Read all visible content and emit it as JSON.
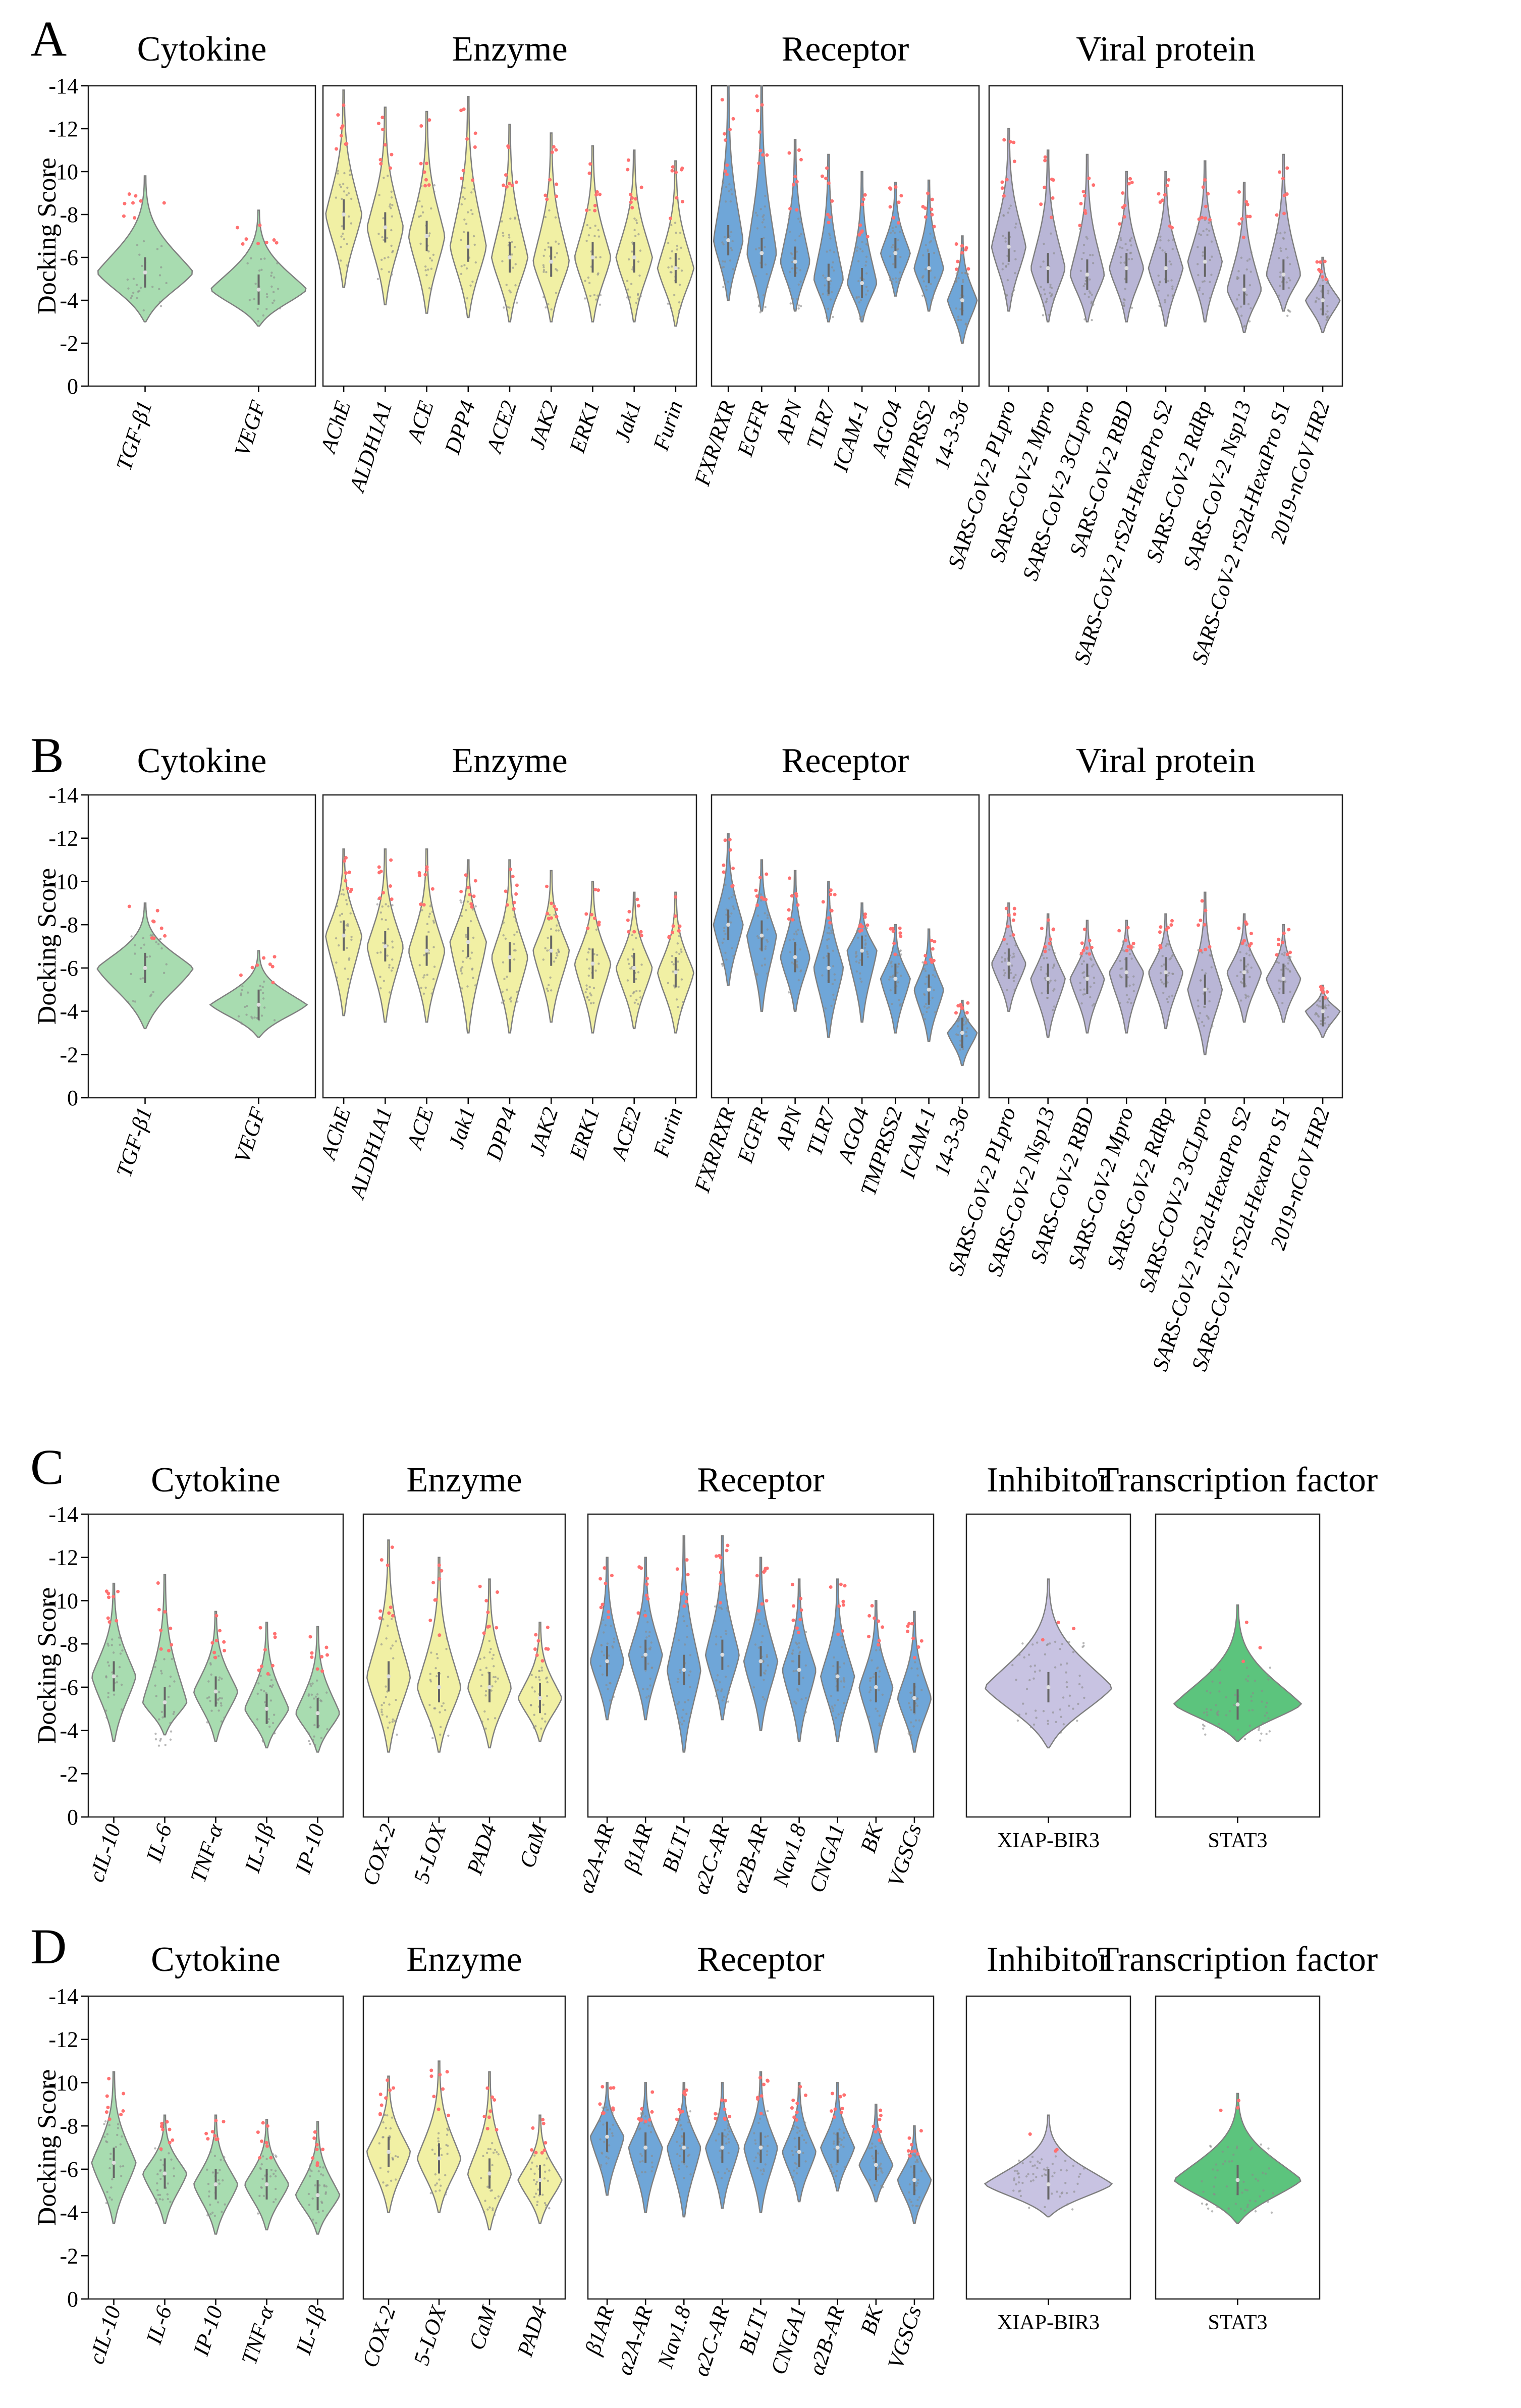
{
  "figure": {
    "y_axis_label": "Docking Score",
    "y_ticks": [
      -14,
      -12,
      -10,
      -8,
      -6,
      -4,
      -2,
      0
    ],
    "ylim": [
      -14,
      0
    ],
    "colors": {
      "Cytokine": "#a8dcb0",
      "Enzyme": "#f1f0a4",
      "Receptor": "#6fa6d8",
      "Viral protein": "#b9b6d6",
      "Inhibitor": "#c8c3e2",
      "Transcription factor": "#5cc47d",
      "top_points": "#ff7070",
      "outline": "#7f7f7f",
      "inner_points": "#8a8a8a"
    }
  },
  "chart_data": [
    {
      "panel": "A",
      "type": "violin",
      "ylabel": "Docking Score",
      "ylim": [
        -14,
        0
      ],
      "groups": [
        {
          "title": "Cytokine",
          "categories": [
            "TGF-β1",
            "VEGF"
          ],
          "medians": [
            -5.3,
            -4.5
          ],
          "tails": [
            [
              -9.8,
              -3.0
            ],
            [
              -8.2,
              -2.8
            ]
          ]
        },
        {
          "title": "Enzyme",
          "categories": [
            "AChE",
            "ALDH1A1",
            "ACE",
            "DPP4",
            "ACE2",
            "JAK2",
            "ERK1",
            "Jak1",
            "Furin"
          ],
          "medians": [
            -8.0,
            -7.4,
            -7.0,
            -6.5,
            -6.0,
            -5.8,
            -6.0,
            -6.0,
            -5.5
          ],
          "tails": [
            [
              -13.8,
              -4.6
            ],
            [
              -13.0,
              -3.8
            ],
            [
              -12.8,
              -3.4
            ],
            [
              -13.5,
              -3.2
            ],
            [
              -12.2,
              -3.0
            ],
            [
              -11.8,
              -3.0
            ],
            [
              -11.2,
              -3.0
            ],
            [
              -11.0,
              -3.0
            ],
            [
              -10.5,
              -2.8
            ]
          ]
        },
        {
          "title": "Receptor",
          "categories": [
            "FXR/RXR",
            "EGFR",
            "APN",
            "TLR7",
            "ICAM-1",
            "AGO4",
            "TMPRSS2",
            "14-3-3σ"
          ],
          "medians": [
            -6.8,
            -6.2,
            -5.8,
            -5.0,
            -4.8,
            -6.2,
            -5.5,
            -4.0
          ],
          "tails": [
            [
              -14.0,
              -4.0
            ],
            [
              -14.0,
              -3.5
            ],
            [
              -11.5,
              -3.5
            ],
            [
              -10.8,
              -3.0
            ],
            [
              -10.0,
              -3.0
            ],
            [
              -9.5,
              -4.2
            ],
            [
              -9.6,
              -3.5
            ],
            [
              -7.0,
              -2.0
            ]
          ]
        },
        {
          "title": "Viral protein",
          "categories": [
            "SARS-CoV-2 PLpro",
            "SARS-CoV-2 Mpro",
            "SARS-CoV-2 3CLpro",
            "SARS-CoV-2 RBD",
            "SARS-CoV-2 rS2d-HexaPro S2",
            "SARS-CoV-2 RdRp",
            "SARS-CoV-2 Nsp13",
            "SARS-CoV-2 rS2d-HexaPro S1",
            "2019-nCoV HR2"
          ],
          "medians": [
            -6.5,
            -5.5,
            -5.2,
            -5.5,
            -5.5,
            -5.8,
            -4.5,
            -5.2,
            -4.0
          ],
          "tails": [
            [
              -12.0,
              -3.5
            ],
            [
              -11.0,
              -3.0
            ],
            [
              -10.8,
              -3.0
            ],
            [
              -10.0,
              -3.0
            ],
            [
              -10.0,
              -2.8
            ],
            [
              -10.5,
              -3.0
            ],
            [
              -9.5,
              -2.5
            ],
            [
              -10.8,
              -3.5
            ],
            [
              -6.0,
              -2.5
            ]
          ]
        }
      ]
    },
    {
      "panel": "B",
      "type": "violin",
      "ylabel": "Docking Score",
      "ylim": [
        -14,
        0
      ],
      "groups": [
        {
          "title": "Cytokine",
          "categories": [
            "TGF-β1",
            "VEGF"
          ],
          "medians": [
            -6.0,
            -4.3
          ],
          "tails": [
            [
              -9.0,
              -3.2
            ],
            [
              -6.8,
              -2.8
            ]
          ]
        },
        {
          "title": "Enzyme",
          "categories": [
            "AChE",
            "ALDH1A1",
            "ACE",
            "Jak1",
            "DPP4",
            "JAK2",
            "ERK1",
            "ACE2",
            "Furin"
          ],
          "medians": [
            -7.5,
            -7.0,
            -6.8,
            -7.2,
            -6.5,
            -6.8,
            -6.2,
            -6.0,
            -5.8
          ],
          "tails": [
            [
              -11.5,
              -3.8
            ],
            [
              -11.5,
              -3.5
            ],
            [
              -11.5,
              -3.5
            ],
            [
              -11.0,
              -3.0
            ],
            [
              -11.0,
              -3.0
            ],
            [
              -10.5,
              -3.5
            ],
            [
              -10.0,
              -3.0
            ],
            [
              -9.5,
              -3.2
            ],
            [
              -9.5,
              -3.0
            ]
          ]
        },
        {
          "title": "Receptor",
          "categories": [
            "FXR/RXR",
            "EGFR",
            "APN",
            "TLR7",
            "AGO4",
            "TMPRSS2",
            "ICAM-1",
            "14-3-3σ"
          ],
          "medians": [
            -8.0,
            -7.5,
            -6.5,
            -6.0,
            -6.8,
            -5.5,
            -5.0,
            -3.0
          ],
          "tails": [
            [
              -12.2,
              -5.2
            ],
            [
              -11.0,
              -4.0
            ],
            [
              -10.5,
              -4.0
            ],
            [
              -10.0,
              -2.8
            ],
            [
              -9.0,
              -3.5
            ],
            [
              -8.0,
              -3.0
            ],
            [
              -7.8,
              -2.6
            ],
            [
              -4.5,
              -1.5
            ]
          ]
        },
        {
          "title": "Viral protein",
          "categories": [
            "SARS-CoV-2 PLpro",
            "SARS-CoV-2 Nsp13",
            "SARS-CoV-2 RBD",
            "SARS-CoV-2 Mpro",
            "SARS-CoV-2 RdRp",
            "SARS-COV-2 3CLpro",
            "SARS-CoV-2 rS2d-HexaPro S2",
            "SARS-CoV-2 rS2d-HexaPro S1",
            "2019-nCoV HR2"
          ],
          "medians": [
            -6.2,
            -5.5,
            -5.5,
            -5.8,
            -5.8,
            -5.0,
            -5.8,
            -5.5,
            -4.0
          ],
          "tails": [
            [
              -9.0,
              -4.0
            ],
            [
              -8.5,
              -2.8
            ],
            [
              -8.2,
              -3.0
            ],
            [
              -8.2,
              -3.0
            ],
            [
              -8.5,
              -3.2
            ],
            [
              -9.5,
              -2.0
            ],
            [
              -8.5,
              -3.5
            ],
            [
              -8.0,
              -3.5
            ],
            [
              -5.2,
              -2.8
            ]
          ]
        }
      ]
    },
    {
      "panel": "C",
      "type": "violin",
      "ylabel": "Docking Score",
      "ylim": [
        -14,
        0
      ],
      "groups": [
        {
          "title": "Cytokine",
          "categories": [
            "cIL-10",
            "IL-6",
            "TNF-α",
            "IL-1β",
            "IP-10"
          ],
          "medians": [
            -6.5,
            -5.3,
            -5.8,
            -5.0,
            -4.8
          ],
          "tails": [
            [
              -10.8,
              -3.5
            ],
            [
              -11.2,
              -3.8
            ],
            [
              -9.5,
              -3.5
            ],
            [
              -9.0,
              -3.2
            ],
            [
              -8.8,
              -3.0
            ]
          ]
        },
        {
          "title": "Enzyme",
          "categories": [
            "COX-2",
            "5-LOX",
            "PAD4",
            "CaM"
          ],
          "medians": [
            -6.5,
            -6.0,
            -6.0,
            -5.5
          ],
          "tails": [
            [
              -12.8,
              -3.0
            ],
            [
              -12.0,
              -3.0
            ],
            [
              -11.0,
              -3.2
            ],
            [
              -9.0,
              -3.5
            ]
          ]
        },
        {
          "title": "Receptor",
          "categories": [
            "α2A-AR",
            "β1AR",
            "BLT1",
            "α2C-AR",
            "α2B-AR",
            "Nav1.8",
            "CNGA1",
            "BK",
            "VGSCs"
          ],
          "medians": [
            -7.2,
            -7.5,
            -6.8,
            -7.5,
            -7.2,
            -6.8,
            -6.5,
            -6.0,
            -5.5
          ],
          "tails": [
            [
              -12.0,
              -4.5
            ],
            [
              -12.0,
              -4.5
            ],
            [
              -13.0,
              -3.0
            ],
            [
              -13.0,
              -4.5
            ],
            [
              -12.0,
              -4.0
            ],
            [
              -11.0,
              -3.5
            ],
            [
              -11.0,
              -3.5
            ],
            [
              -10.0,
              -3.0
            ],
            [
              -9.5,
              -3.0
            ]
          ]
        },
        {
          "title": "Inhibitor",
          "categories": [
            "XIAP-BIR3"
          ],
          "medians": [
            -6.0
          ],
          "tails": [
            [
              -11.0,
              -3.2
            ]
          ]
        },
        {
          "title": "Transcription factor",
          "categories": [
            "STAT3"
          ],
          "medians": [
            -5.2
          ],
          "tails": [
            [
              -9.8,
              -3.5
            ]
          ]
        }
      ]
    },
    {
      "panel": "D",
      "type": "violin",
      "ylabel": "Docking Score",
      "ylim": [
        -14,
        0
      ],
      "groups": [
        {
          "title": "Cytokine",
          "categories": [
            "cIL-10",
            "IL-6",
            "IP-10",
            "TNF-α",
            "IL-1β"
          ],
          "medians": [
            -6.3,
            -5.8,
            -5.3,
            -5.3,
            -4.8
          ],
          "tails": [
            [
              -10.5,
              -3.5
            ],
            [
              -8.5,
              -3.5
            ],
            [
              -8.5,
              -3.0
            ],
            [
              -8.3,
              -3.2
            ],
            [
              -8.2,
              -3.0
            ]
          ]
        },
        {
          "title": "Enzyme",
          "categories": [
            "COX-2",
            "5-LOX",
            "CaM",
            "PAD4"
          ],
          "medians": [
            -6.8,
            -6.5,
            -5.8,
            -5.5
          ],
          "tails": [
            [
              -10.3,
              -4.0
            ],
            [
              -11.0,
              -4.0
            ],
            [
              -10.5,
              -3.2
            ],
            [
              -8.5,
              -3.5
            ]
          ]
        },
        {
          "title": "Receptor",
          "categories": [
            "β1AR",
            "α2A-AR",
            "Nav1.8",
            "α2C-AR",
            "BLT1",
            "CNGA1",
            "α2B-AR",
            "BK",
            "VGSCs"
          ],
          "medians": [
            -7.5,
            -7.0,
            -7.0,
            -7.0,
            -7.0,
            -6.8,
            -7.0,
            -6.2,
            -5.5
          ],
          "tails": [
            [
              -10.0,
              -4.8
            ],
            [
              -10.0,
              -4.0
            ],
            [
              -10.0,
              -3.8
            ],
            [
              -10.0,
              -4.2
            ],
            [
              -10.5,
              -4.0
            ],
            [
              -10.0,
              -4.5
            ],
            [
              -10.0,
              -5.0
            ],
            [
              -9.0,
              -4.5
            ],
            [
              -8.0,
              -3.5
            ]
          ]
        },
        {
          "title": "Inhibitor",
          "categories": [
            "XIAP-BIR3"
          ],
          "medians": [
            -5.3
          ],
          "tails": [
            [
              -8.5,
              -3.8
            ]
          ]
        },
        {
          "title": "Transcription factor",
          "categories": [
            "STAT3"
          ],
          "medians": [
            -5.5
          ],
          "tails": [
            [
              -9.5,
              -3.5
            ]
          ]
        }
      ]
    }
  ]
}
